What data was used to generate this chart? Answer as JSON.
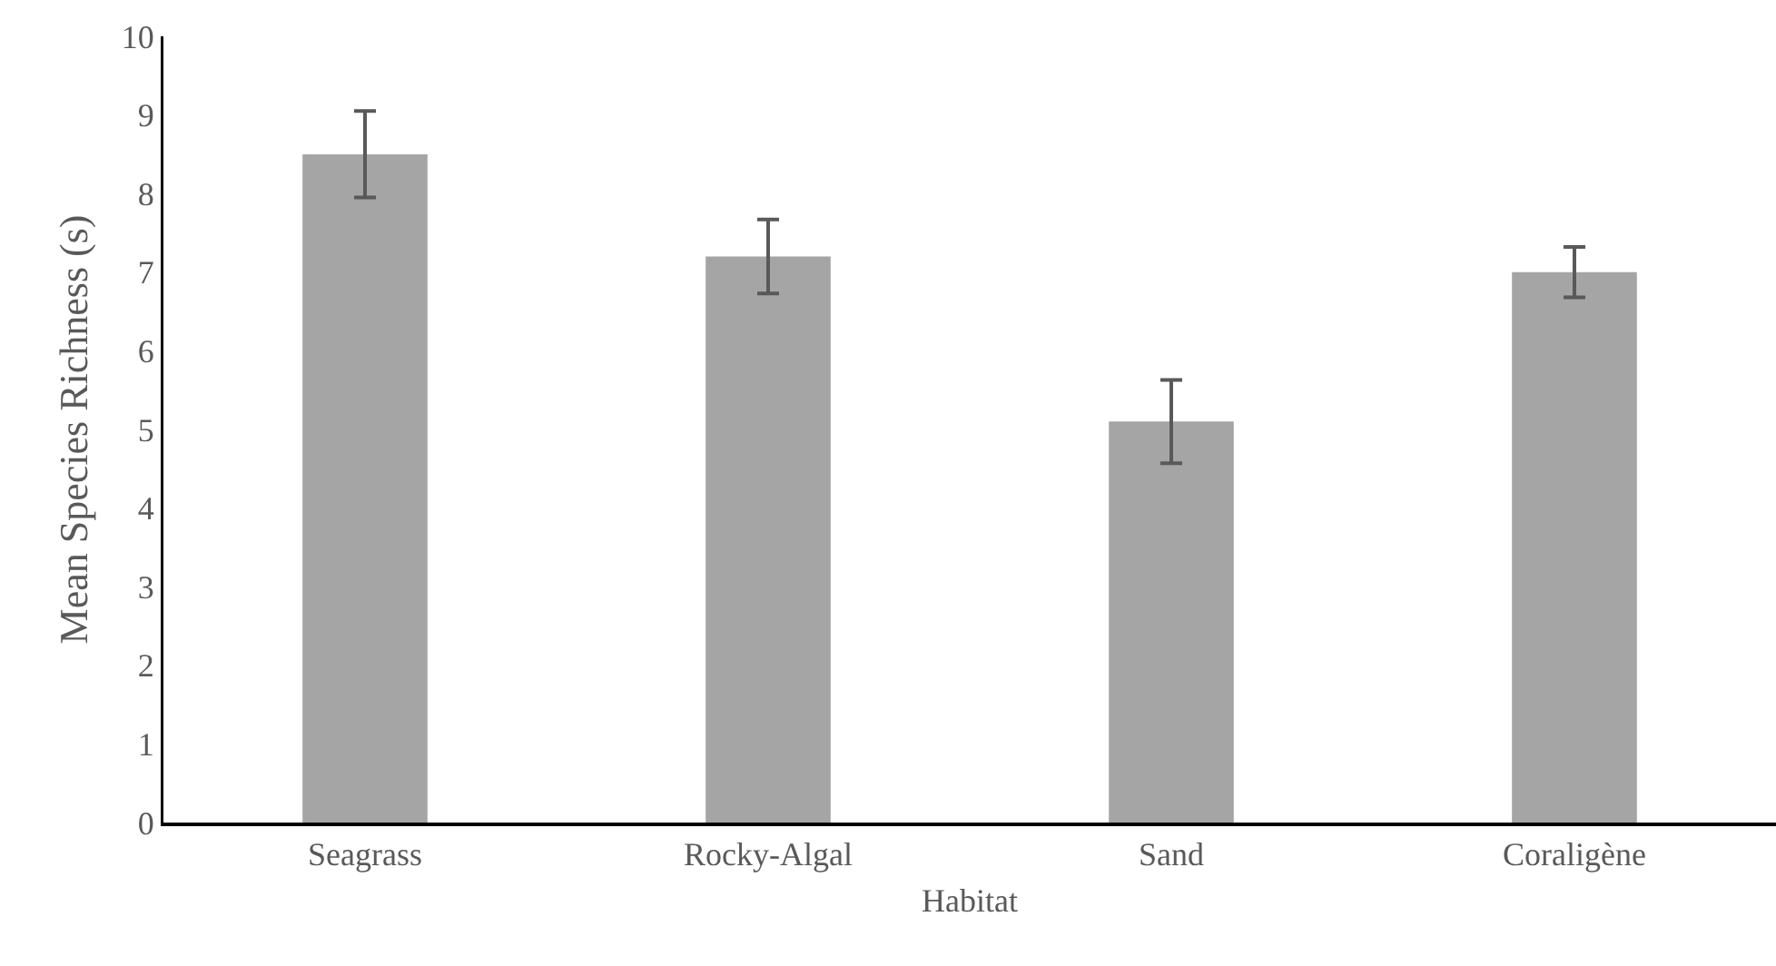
{
  "chart_data": {
    "type": "bar",
    "xlabel": "Habitat",
    "ylabel": "Mean Species Richness (s)",
    "categories": [
      "Seagrass",
      "Rocky-Algal",
      "Sand",
      "Coraligène"
    ],
    "values": [
      8.5,
      7.2,
      5.1,
      7.0
    ],
    "errors": [
      0.55,
      0.47,
      0.53,
      0.32
    ],
    "color": "#a5a5a5",
    "ylim": [
      0,
      10
    ],
    "yticks": [
      0,
      1,
      2,
      3,
      4,
      5,
      6,
      7,
      8,
      9,
      10
    ],
    "grid": false
  }
}
